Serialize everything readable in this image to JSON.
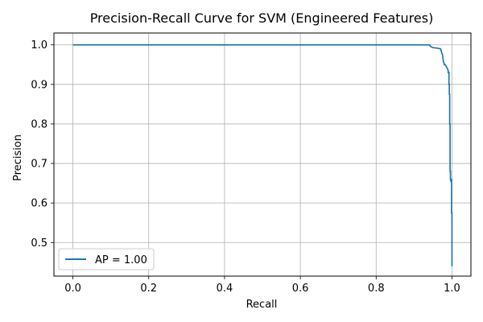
{
  "chart_data": {
    "type": "line",
    "title": "Precision-Recall Curve for SVM (Engineered Features)",
    "xlabel": "Recall",
    "ylabel": "Precision",
    "xlim": [
      -0.05,
      1.05
    ],
    "ylim": [
      0.415,
      1.03
    ],
    "xticks": [
      0.0,
      0.2,
      0.4,
      0.6,
      0.8,
      1.0
    ],
    "yticks": [
      0.5,
      0.6,
      0.7,
      0.8,
      0.9,
      1.0
    ],
    "xtick_labels": [
      "0.0",
      "0.2",
      "0.4",
      "0.6",
      "0.8",
      "1.0"
    ],
    "ytick_labels": [
      "0.5",
      "0.6",
      "0.7",
      "0.8",
      "0.9",
      "1.0"
    ],
    "grid": true,
    "legend_position": "lower-left",
    "series": [
      {
        "name": "AP = 1.00",
        "color": "#1f77b4",
        "x": [
          0.0,
          0.94,
          0.945,
          0.95,
          0.96,
          0.97,
          0.973,
          0.975,
          0.977,
          0.98,
          0.982,
          0.985,
          0.988,
          0.99,
          0.99,
          0.992,
          0.992,
          0.993,
          0.993,
          0.994,
          0.994,
          0.995,
          0.995,
          0.995,
          0.996,
          0.996,
          0.997,
          0.997,
          0.998,
          0.998,
          0.999,
          0.999,
          0.999,
          1.0,
          1.0
        ],
        "y": [
          1.0,
          1.0,
          0.995,
          0.993,
          0.992,
          0.99,
          0.98,
          0.975,
          0.96,
          0.95,
          0.95,
          0.945,
          0.94,
          0.935,
          0.93,
          0.93,
          0.9,
          0.9,
          0.875,
          0.875,
          0.8,
          0.8,
          0.69,
          0.68,
          0.68,
          0.66,
          0.66,
          0.655,
          0.655,
          0.66,
          0.66,
          0.58,
          0.575,
          0.575,
          0.44
        ]
      }
    ]
  }
}
